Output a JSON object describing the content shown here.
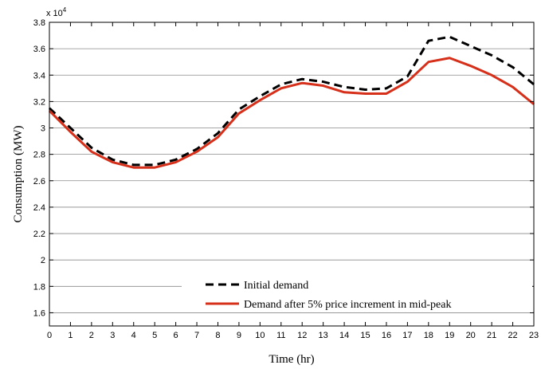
{
  "chart_data": {
    "type": "line",
    "xlabel": "Time (hr)",
    "ylabel": "Consumption (MW)",
    "y_exponent_label": "x 10",
    "y_exponent_power": "4",
    "xlim": [
      0,
      23
    ],
    "ylim": [
      1.5,
      3.8
    ],
    "x": [
      0,
      1,
      2,
      3,
      4,
      5,
      6,
      7,
      8,
      9,
      10,
      11,
      12,
      13,
      14,
      15,
      16,
      17,
      18,
      19,
      20,
      21,
      22,
      23
    ],
    "x_tick_labels": [
      "0",
      "1",
      "2",
      "3",
      "4",
      "5",
      "6",
      "7",
      "8",
      "9",
      "10",
      "11",
      "12",
      "13",
      "14",
      "15",
      "16",
      "17",
      "18",
      "19",
      "20",
      "21",
      "22",
      "23"
    ],
    "y_ticks": [
      1.6,
      1.8,
      2,
      2.2,
      2.4,
      2.6,
      2.8,
      3,
      3.2,
      3.4,
      3.6,
      3.8
    ],
    "y_tick_labels": [
      "1.6",
      "1.8",
      "2",
      "2.2",
      "2.4",
      "2.6",
      "2.8",
      "3",
      "3.2",
      "3.4",
      "3.6",
      "3.8"
    ],
    "grid": "horizontal",
    "legend_position": "bottom-right",
    "series": [
      {
        "name": "Initial demand",
        "color": "#000000",
        "style": "dashed",
        "values": [
          3.15,
          3.0,
          2.85,
          2.76,
          2.72,
          2.72,
          2.76,
          2.84,
          2.96,
          3.14,
          3.24,
          3.33,
          3.37,
          3.35,
          3.31,
          3.29,
          3.3,
          3.39,
          3.66,
          3.69,
          3.62,
          3.55,
          3.46,
          3.33
        ]
      },
      {
        "name": "Demand after 5% price increment in mid-peak",
        "color": "#d62f1a",
        "style": "solid",
        "values": [
          3.13,
          2.97,
          2.82,
          2.74,
          2.7,
          2.7,
          2.74,
          2.82,
          2.93,
          3.11,
          3.21,
          3.3,
          3.34,
          3.32,
          3.27,
          3.26,
          3.26,
          3.35,
          3.5,
          3.53,
          3.47,
          3.4,
          3.31,
          3.18
        ]
      }
    ]
  }
}
